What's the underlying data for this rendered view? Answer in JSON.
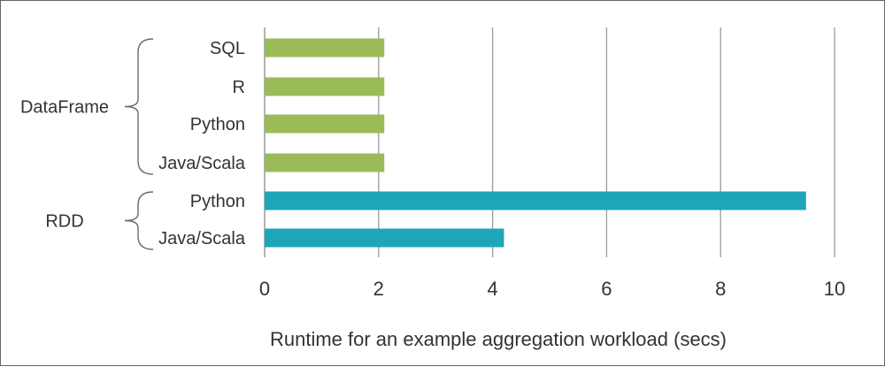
{
  "chart_data": {
    "type": "bar",
    "orientation": "horizontal",
    "title": "",
    "xlabel": "Runtime for an example aggregation workload (secs)",
    "ylabel": "",
    "xlim": [
      0,
      10
    ],
    "xticks": [
      0,
      2,
      4,
      6,
      8,
      10
    ],
    "grid": "vertical",
    "categories": [
      "SQL",
      "R",
      "Python",
      "Java/Scala",
      "Python",
      "Java/Scala"
    ],
    "values": [
      2.1,
      2.1,
      2.1,
      2.1,
      9.5,
      4.2
    ],
    "groups": [
      {
        "name": "DataFrame",
        "start": 0,
        "end": 3,
        "color": "#9bbb59"
      },
      {
        "name": "RDD",
        "start": 4,
        "end": 5,
        "color": "#1fa5b8"
      }
    ]
  }
}
